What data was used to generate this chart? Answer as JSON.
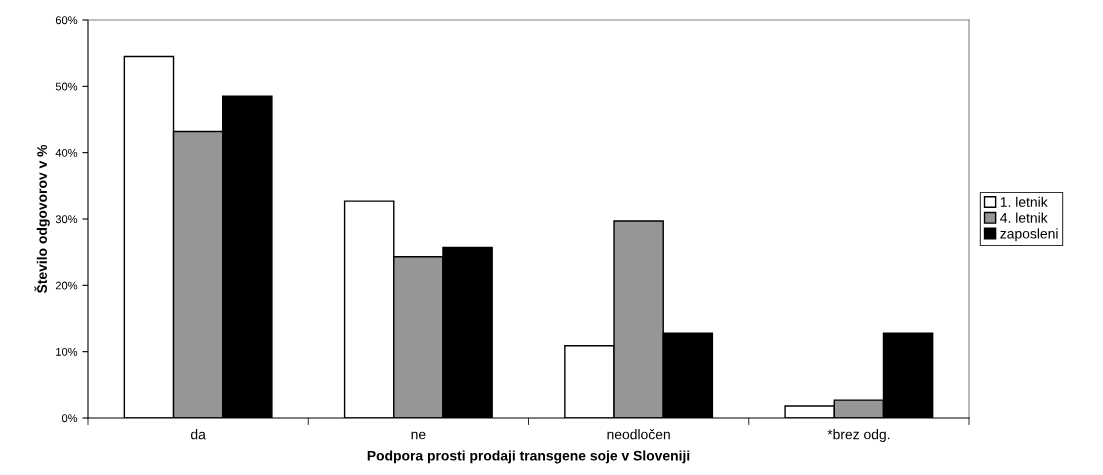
{
  "chart_data": {
    "type": "bar",
    "xlabel": "Podpora prosti prodaji transgene soje v Sloveniji",
    "ylabel": "Število odgovorov v %",
    "categories": [
      "da",
      "ne",
      "neodločen",
      "*brez odg."
    ],
    "series": [
      {
        "name": "1. letnik",
        "color": "#ffffff",
        "values": [
          54.5,
          32.7,
          10.9,
          1.8
        ]
      },
      {
        "name": "4. letnik",
        "color": "#969696",
        "values": [
          43.2,
          24.3,
          29.7,
          2.7
        ]
      },
      {
        "name": "zaposleni",
        "color": "#000000",
        "values": [
          48.5,
          25.7,
          12.8,
          12.8
        ]
      }
    ],
    "ylim": [
      0,
      60
    ],
    "yticks": [
      {
        "value": 0,
        "label": "0%"
      },
      {
        "value": 10,
        "label": "10%"
      },
      {
        "value": 20,
        "label": "20%"
      },
      {
        "value": 30,
        "label": "30%"
      },
      {
        "value": 40,
        "label": "40%"
      },
      {
        "value": 50,
        "label": "50%"
      },
      {
        "value": 60,
        "label": "60%"
      }
    ],
    "grid": false,
    "legend": "right"
  }
}
